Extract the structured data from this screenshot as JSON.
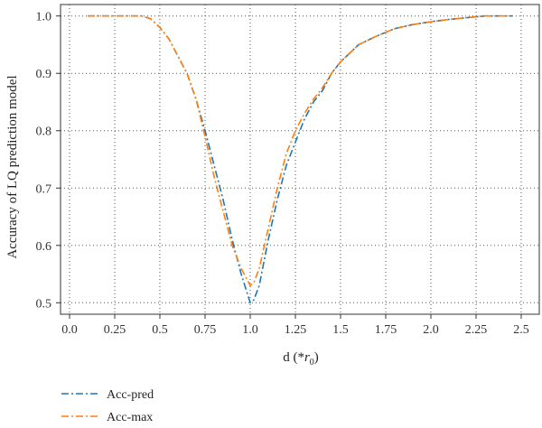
{
  "chart_data": {
    "type": "line",
    "title": "",
    "xlabel_prefix": "d (*",
    "xlabel_symbol": "r",
    "xlabel_subscript": "0",
    "xlabel_suffix": ")",
    "ylabel": "Accuracy of LQ prediction model",
    "xlim": [
      -0.05,
      2.6
    ],
    "ylim": [
      0.48,
      1.02
    ],
    "xticks": [
      0.0,
      0.25,
      0.5,
      0.75,
      1.0,
      1.25,
      1.5,
      1.75,
      2.0,
      2.25,
      2.5
    ],
    "xtick_labels": [
      "0.0",
      "0.25",
      "0.5",
      "0.75",
      "1.0",
      "1.25",
      "1.5",
      "1.75",
      "2.0",
      "2.25",
      "2.5"
    ],
    "yticks": [
      0.5,
      0.6,
      0.7,
      0.8,
      0.9,
      1.0
    ],
    "ytick_labels": [
      "0.5",
      "0.6",
      "0.7",
      "0.8",
      "0.9",
      "1.0"
    ],
    "grid": true,
    "legend_position": "below-left",
    "series": [
      {
        "name": "Acc-pred",
        "color": "#1f77b4",
        "dash": "dash-dot",
        "points": [
          [
            0.1,
            1.0
          ],
          [
            0.25,
            1.0
          ],
          [
            0.4,
            1.0
          ],
          [
            0.45,
            0.995
          ],
          [
            0.5,
            0.98
          ],
          [
            0.55,
            0.96
          ],
          [
            0.6,
            0.93
          ],
          [
            0.65,
            0.9
          ],
          [
            0.7,
            0.855
          ],
          [
            0.75,
            0.8
          ],
          [
            0.8,
            0.74
          ],
          [
            0.85,
            0.68
          ],
          [
            0.9,
            0.61
          ],
          [
            0.95,
            0.55
          ],
          [
            1.0,
            0.5
          ],
          [
            1.02,
            0.505
          ],
          [
            1.05,
            0.53
          ],
          [
            1.1,
            0.61
          ],
          [
            1.15,
            0.68
          ],
          [
            1.2,
            0.74
          ],
          [
            1.25,
            0.78
          ],
          [
            1.3,
            0.82
          ],
          [
            1.35,
            0.85
          ],
          [
            1.4,
            0.87
          ],
          [
            1.45,
            0.9
          ],
          [
            1.5,
            0.92
          ],
          [
            1.55,
            0.935
          ],
          [
            1.6,
            0.95
          ],
          [
            1.7,
            0.965
          ],
          [
            1.8,
            0.978
          ],
          [
            1.9,
            0.985
          ],
          [
            2.0,
            0.99
          ],
          [
            2.1,
            0.994
          ],
          [
            2.2,
            0.997
          ],
          [
            2.3,
            1.0
          ],
          [
            2.45,
            1.0
          ]
        ]
      },
      {
        "name": "Acc-max",
        "color": "#ff7f0e",
        "dash": "dash-dot",
        "points": [
          [
            0.1,
            1.0
          ],
          [
            0.25,
            1.0
          ],
          [
            0.4,
            1.0
          ],
          [
            0.45,
            0.995
          ],
          [
            0.5,
            0.98
          ],
          [
            0.55,
            0.96
          ],
          [
            0.6,
            0.93
          ],
          [
            0.65,
            0.9
          ],
          [
            0.7,
            0.855
          ],
          [
            0.75,
            0.79
          ],
          [
            0.8,
            0.72
          ],
          [
            0.85,
            0.66
          ],
          [
            0.9,
            0.6
          ],
          [
            0.95,
            0.56
          ],
          [
            1.0,
            0.53
          ],
          [
            1.02,
            0.535
          ],
          [
            1.05,
            0.56
          ],
          [
            1.1,
            0.63
          ],
          [
            1.15,
            0.7
          ],
          [
            1.2,
            0.76
          ],
          [
            1.25,
            0.8
          ],
          [
            1.3,
            0.83
          ],
          [
            1.35,
            0.855
          ],
          [
            1.4,
            0.875
          ],
          [
            1.45,
            0.9
          ],
          [
            1.5,
            0.92
          ],
          [
            1.55,
            0.935
          ],
          [
            1.6,
            0.95
          ],
          [
            1.7,
            0.965
          ],
          [
            1.8,
            0.978
          ],
          [
            1.9,
            0.985
          ],
          [
            2.0,
            0.99
          ],
          [
            2.1,
            0.994
          ],
          [
            2.2,
            0.997
          ],
          [
            2.3,
            1.0
          ],
          [
            2.45,
            1.0
          ]
        ]
      }
    ]
  }
}
